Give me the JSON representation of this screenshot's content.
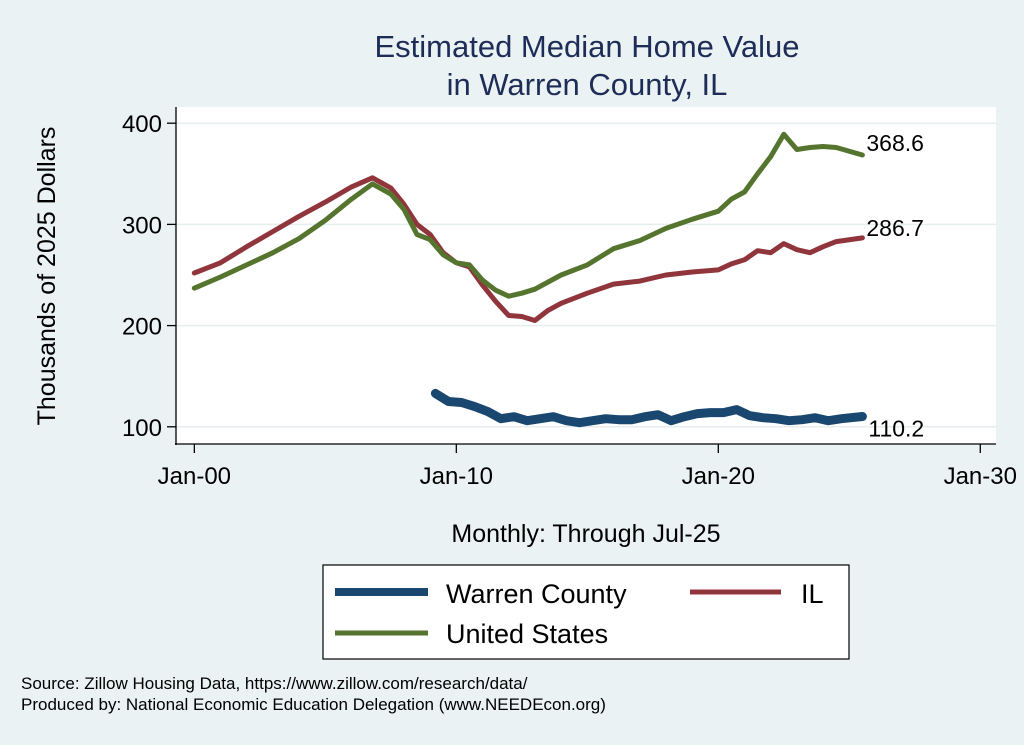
{
  "chart_data": {
    "type": "line",
    "title": [
      "Estimated Median Home Value",
      "in Warren County, IL"
    ],
    "xlabel": "Monthly: Through Jul-25",
    "ylabel": "Thousands of 2025 Dollars",
    "x_unit": "years since Jan-2000",
    "xlim": [
      -0.7,
      30.6
    ],
    "ylim": [
      83,
      416
    ],
    "x_ticks": [
      {
        "value": 0,
        "label": "Jan-00"
      },
      {
        "value": 10,
        "label": "Jan-10"
      },
      {
        "value": 20,
        "label": "Jan-20"
      },
      {
        "value": 30,
        "label": "Jan-30"
      }
    ],
    "y_ticks": [
      {
        "value": 100,
        "label": "100"
      },
      {
        "value": 200,
        "label": "200"
      },
      {
        "value": 300,
        "label": "300"
      },
      {
        "value": 400,
        "label": "400"
      }
    ],
    "grid": true,
    "legend_position": "bottom",
    "series": [
      {
        "name": "Warren County",
        "color": "#1a476f",
        "end_label": "110.2",
        "points": [
          [
            9.2,
            133
          ],
          [
            9.7,
            125
          ],
          [
            10.2,
            124
          ],
          [
            10.7,
            120
          ],
          [
            11.2,
            115
          ],
          [
            11.7,
            108
          ],
          [
            12.2,
            110
          ],
          [
            12.7,
            106
          ],
          [
            13.2,
            108
          ],
          [
            13.7,
            110
          ],
          [
            14.2,
            106
          ],
          [
            14.7,
            104
          ],
          [
            15.2,
            106
          ],
          [
            15.7,
            108
          ],
          [
            16.2,
            107
          ],
          [
            16.7,
            107
          ],
          [
            17.2,
            110
          ],
          [
            17.7,
            112
          ],
          [
            18.2,
            106
          ],
          [
            18.7,
            110
          ],
          [
            19.2,
            113
          ],
          [
            19.7,
            114
          ],
          [
            20.2,
            114
          ],
          [
            20.7,
            117
          ],
          [
            21.2,
            111
          ],
          [
            21.7,
            109
          ],
          [
            22.2,
            108
          ],
          [
            22.7,
            106
          ],
          [
            23.2,
            107
          ],
          [
            23.7,
            109
          ],
          [
            24.2,
            106
          ],
          [
            24.7,
            108
          ],
          [
            25.5,
            110.2
          ]
        ]
      },
      {
        "name": "IL",
        "color": "#90353b",
        "end_label": "286.7",
        "points": [
          [
            0,
            252
          ],
          [
            1,
            262
          ],
          [
            2,
            278
          ],
          [
            3,
            293
          ],
          [
            4,
            308
          ],
          [
            5,
            322
          ],
          [
            6,
            337
          ],
          [
            6.8,
            346
          ],
          [
            7.5,
            336
          ],
          [
            8,
            320
          ],
          [
            8.5,
            300
          ],
          [
            9,
            290
          ],
          [
            9.5,
            272
          ],
          [
            10,
            262
          ],
          [
            10.5,
            258
          ],
          [
            11,
            240
          ],
          [
            11.5,
            224
          ],
          [
            12,
            210
          ],
          [
            12.5,
            209
          ],
          [
            13,
            205
          ],
          [
            13.5,
            215
          ],
          [
            14,
            222
          ],
          [
            15,
            232
          ],
          [
            16,
            241
          ],
          [
            17,
            244
          ],
          [
            18,
            250
          ],
          [
            19,
            253
          ],
          [
            20,
            255
          ],
          [
            20.5,
            261
          ],
          [
            21,
            265
          ],
          [
            21.5,
            274
          ],
          [
            22,
            272
          ],
          [
            22.5,
            281
          ],
          [
            23,
            275
          ],
          [
            23.5,
            272
          ],
          [
            24,
            278
          ],
          [
            24.5,
            283
          ],
          [
            25.5,
            286.7
          ]
        ]
      },
      {
        "name": "United States",
        "color": "#55752f",
        "end_label": "368.6",
        "points": [
          [
            0,
            237
          ],
          [
            1,
            248
          ],
          [
            2,
            260
          ],
          [
            3,
            272
          ],
          [
            4,
            286
          ],
          [
            5,
            304
          ],
          [
            6,
            325
          ],
          [
            6.8,
            340
          ],
          [
            7.5,
            330
          ],
          [
            8,
            315
          ],
          [
            8.5,
            290
          ],
          [
            9,
            285
          ],
          [
            9.5,
            270
          ],
          [
            10,
            262
          ],
          [
            10.5,
            260
          ],
          [
            11,
            245
          ],
          [
            11.5,
            235
          ],
          [
            12,
            229
          ],
          [
            12.5,
            232
          ],
          [
            13,
            236
          ],
          [
            14,
            250
          ],
          [
            15,
            260
          ],
          [
            16,
            276
          ],
          [
            17,
            284
          ],
          [
            18,
            296
          ],
          [
            19,
            305
          ],
          [
            20,
            313
          ],
          [
            20.5,
            325
          ],
          [
            21,
            332
          ],
          [
            21.5,
            350
          ],
          [
            22,
            367
          ],
          [
            22.5,
            389
          ],
          [
            23,
            374
          ],
          [
            23.5,
            376
          ],
          [
            24,
            377
          ],
          [
            24.5,
            376
          ],
          [
            25.5,
            368.6
          ]
        ]
      }
    ],
    "notes": [
      "Source: Zillow Housing Data, https://www.zillow.com/research/data/",
      "Produced by: National Economic Education Delegation (www.NEEDEcon.org)"
    ]
  }
}
